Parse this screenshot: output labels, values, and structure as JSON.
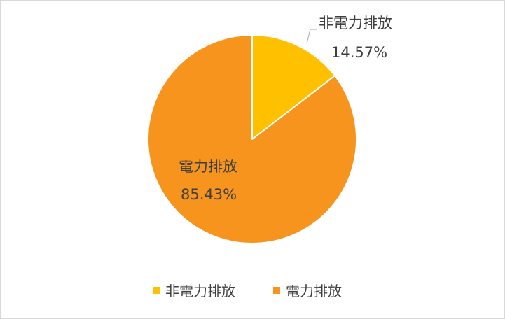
{
  "chart_data": {
    "type": "pie",
    "title": "",
    "categories": [
      "非電力排放",
      "電力排放"
    ],
    "values": [
      14.57,
      85.43
    ],
    "value_labels": [
      "14.57%",
      "85.43%"
    ],
    "colors": [
      "#FFC000",
      "#F7941D"
    ],
    "legend_position": "bottom",
    "start_angle": "12 o'clock",
    "direction": "clockwise"
  }
}
